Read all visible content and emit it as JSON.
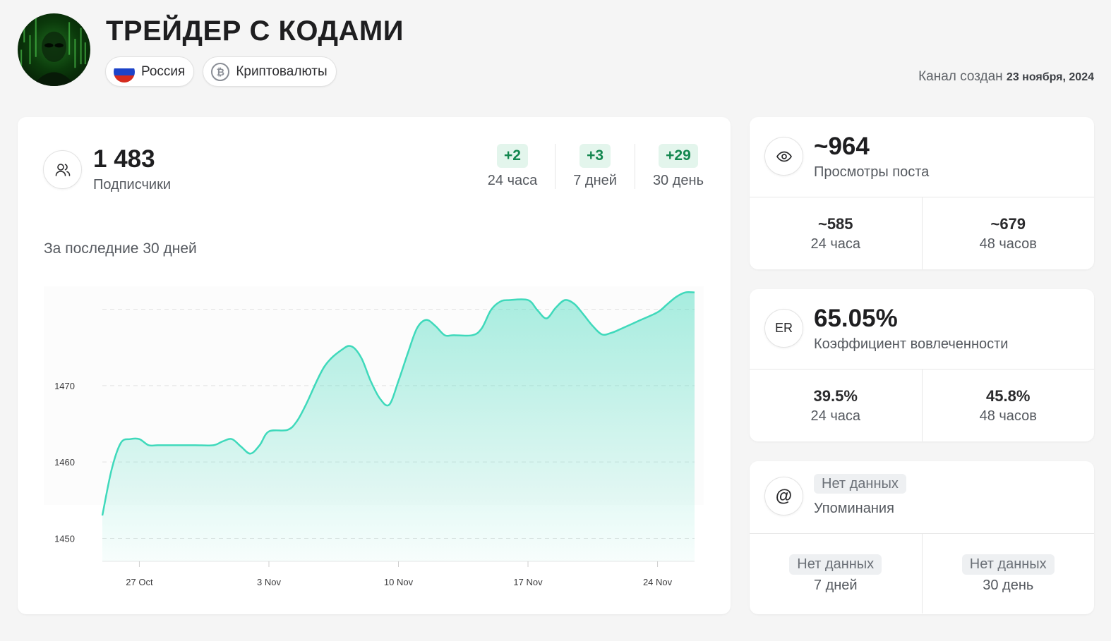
{
  "channel": {
    "title": "ТРЕЙДЕР С КОДАМИ",
    "country": "Россия",
    "category": "Криптовалюты",
    "created_label": "Канал создан",
    "created_date": "23 ноября, 2024"
  },
  "subscribers": {
    "value": "1 483",
    "label": "Подписчики",
    "growth": [
      {
        "value": "+2",
        "label": "24 часа"
      },
      {
        "value": "+3",
        "label": "7 дней"
      },
      {
        "value": "+29",
        "label": "30 день"
      }
    ],
    "period_label": "За последние 30 дней"
  },
  "views": {
    "value": "~964",
    "label": "Просмотры поста",
    "cells": [
      {
        "value": "~585",
        "label": "24 часа"
      },
      {
        "value": "~679",
        "label": "48 часов"
      }
    ]
  },
  "er": {
    "icon_text": "ER",
    "value": "65.05%",
    "label": "Коэффициент вовлеченности",
    "cells": [
      {
        "value": "39.5%",
        "label": "24 часа"
      },
      {
        "value": "45.8%",
        "label": "48 часов"
      }
    ]
  },
  "mentions": {
    "value": "Нет данных",
    "label": "Упоминания",
    "cells": [
      {
        "value": "Нет данных",
        "label": "7 дней"
      },
      {
        "value": "Нет данных",
        "label": "30 день"
      }
    ]
  },
  "icons": {
    "subscribers": "users-icon",
    "views": "eye-icon",
    "mentions": "at-icon",
    "crypto": "bitcoin-icon",
    "flag": "russia-flag-icon"
  },
  "colors": {
    "accent": "#3fd9bb",
    "growth_badge_bg": "#e3f5ec",
    "growth_badge_text": "#13874f"
  },
  "chart_data": {
    "type": "area",
    "title": "",
    "xlabel": "",
    "ylabel": "",
    "ylim": [
      1447,
      1483
    ],
    "y_ticks": [
      1450,
      1460,
      1470
    ],
    "grid": true,
    "x_ticks": [
      {
        "day": 3,
        "label": "27 Oct"
      },
      {
        "day": 10,
        "label": "3 Nov"
      },
      {
        "day": 17,
        "label": "10 Nov"
      },
      {
        "day": 24,
        "label": "17 Nov"
      },
      {
        "day": 31,
        "label": "24 Nov"
      }
    ],
    "series": [
      {
        "values": [
          [
            1,
            1453
          ],
          [
            1.5,
            1459
          ],
          [
            2,
            1462.5
          ],
          [
            2.5,
            1463
          ],
          [
            3,
            1463
          ],
          [
            3.5,
            1462.2
          ],
          [
            4,
            1462.2
          ],
          [
            5,
            1462.2
          ],
          [
            6,
            1462.2
          ],
          [
            7,
            1462.2
          ],
          [
            7.5,
            1462.7
          ],
          [
            8,
            1463
          ],
          [
            8.5,
            1462
          ],
          [
            9,
            1461.1
          ],
          [
            9.5,
            1462.2
          ],
          [
            10,
            1464
          ],
          [
            11,
            1464.2
          ],
          [
            11.5,
            1465.3
          ],
          [
            12,
            1467.5
          ],
          [
            13,
            1472.5
          ],
          [
            14,
            1474.8
          ],
          [
            14.5,
            1475.1
          ],
          [
            15,
            1473.6
          ],
          [
            15.5,
            1470.6
          ],
          [
            16,
            1468.3
          ],
          [
            16.5,
            1467.5
          ],
          [
            17,
            1470.6
          ],
          [
            17.5,
            1474.2
          ],
          [
            18,
            1477.5
          ],
          [
            18.5,
            1478.6
          ],
          [
            19,
            1477.8
          ],
          [
            19.5,
            1476.6
          ],
          [
            20,
            1476.6
          ],
          [
            21,
            1476.6
          ],
          [
            21.5,
            1477.5
          ],
          [
            22,
            1479.9
          ],
          [
            22.5,
            1481
          ],
          [
            23,
            1481.2
          ],
          [
            24,
            1481.2
          ],
          [
            24.5,
            1479.9
          ],
          [
            25,
            1478.8
          ],
          [
            25.5,
            1480.2
          ],
          [
            26,
            1481.2
          ],
          [
            26.5,
            1480.7
          ],
          [
            27,
            1479.3
          ],
          [
            27.5,
            1477.8
          ],
          [
            28,
            1476.7
          ],
          [
            28.5,
            1476.9
          ],
          [
            29,
            1477.4
          ],
          [
            30,
            1478.5
          ],
          [
            31,
            1479.6
          ],
          [
            31.5,
            1480.6
          ],
          [
            32,
            1481.6
          ],
          [
            32.5,
            1482.2
          ],
          [
            33,
            1482.2
          ]
        ]
      }
    ]
  }
}
